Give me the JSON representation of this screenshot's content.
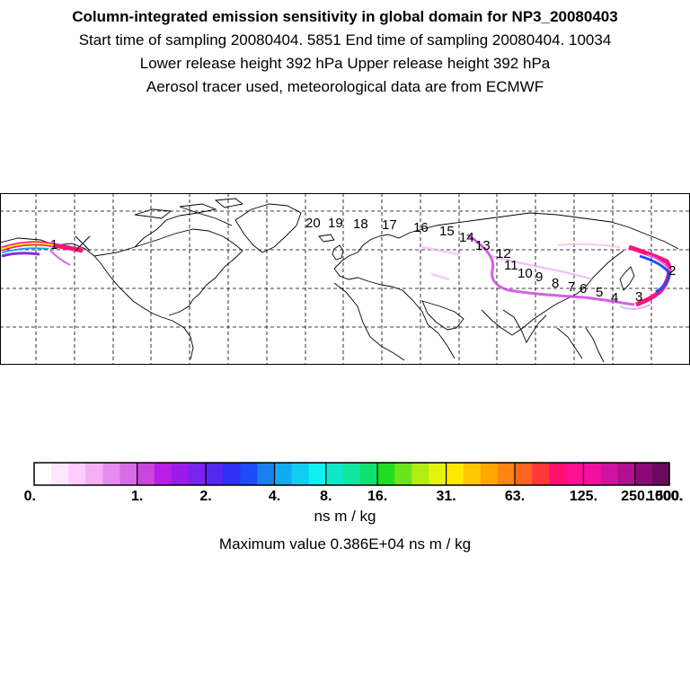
{
  "header": {
    "title": "Column-integrated emission sensitivity in global domain for NP3_20080403",
    "sampling_line": "Start time of sampling 20080404.  5851      End time of sampling 20080404. 10034",
    "release_line": "Lower release height  392 hPa        Upper release height  392 hPa",
    "tracer_line": "Aerosol tracer used, meteorological data are from ECMWF"
  },
  "map": {
    "trajectory_labels": [
      "1",
      "2",
      "3",
      "4",
      "5",
      "6",
      "7",
      "8",
      "9",
      "10",
      "11",
      "12",
      "13",
      "14",
      "15",
      "16",
      "17",
      "18",
      "19",
      "20"
    ],
    "release_marker": "x-mark"
  },
  "colorbar": {
    "colors": [
      "#ffffff",
      "#ffe6ff",
      "#ffccff",
      "#f5b0f5",
      "#e58cf0",
      "#d96ae8",
      "#cc44e0",
      "#b81ee6",
      "#9a1be8",
      "#7a22ee",
      "#5528f0",
      "#2e2ef5",
      "#1c4df5",
      "#1a80f2",
      "#12aaf0",
      "#11cdf2",
      "#10f0f0",
      "#10e6c8",
      "#10e6a0",
      "#10e070",
      "#20dd20",
      "#6ce41c",
      "#b3ee12",
      "#e4f40e",
      "#ffe800",
      "#ffc800",
      "#ffa800",
      "#ff8410",
      "#ff6420",
      "#ff3838",
      "#ff1070",
      "#ff1090",
      "#f012a0",
      "#d012a0",
      "#b0108e",
      "#8c0a78",
      "#6a0a5e"
    ],
    "group_boundaries": [
      6,
      10,
      14,
      17,
      20,
      24,
      28,
      32,
      35,
      37
    ],
    "tick_labels": [
      "0.",
      "1.",
      "2.",
      "4.",
      "8.",
      "16.",
      "31.",
      "63.",
      "125.",
      "250.",
      "500.",
      "1000."
    ],
    "units": "ns m / kg",
    "max_value_text": "Maximum value  0.386E+04 ns m / kg"
  }
}
